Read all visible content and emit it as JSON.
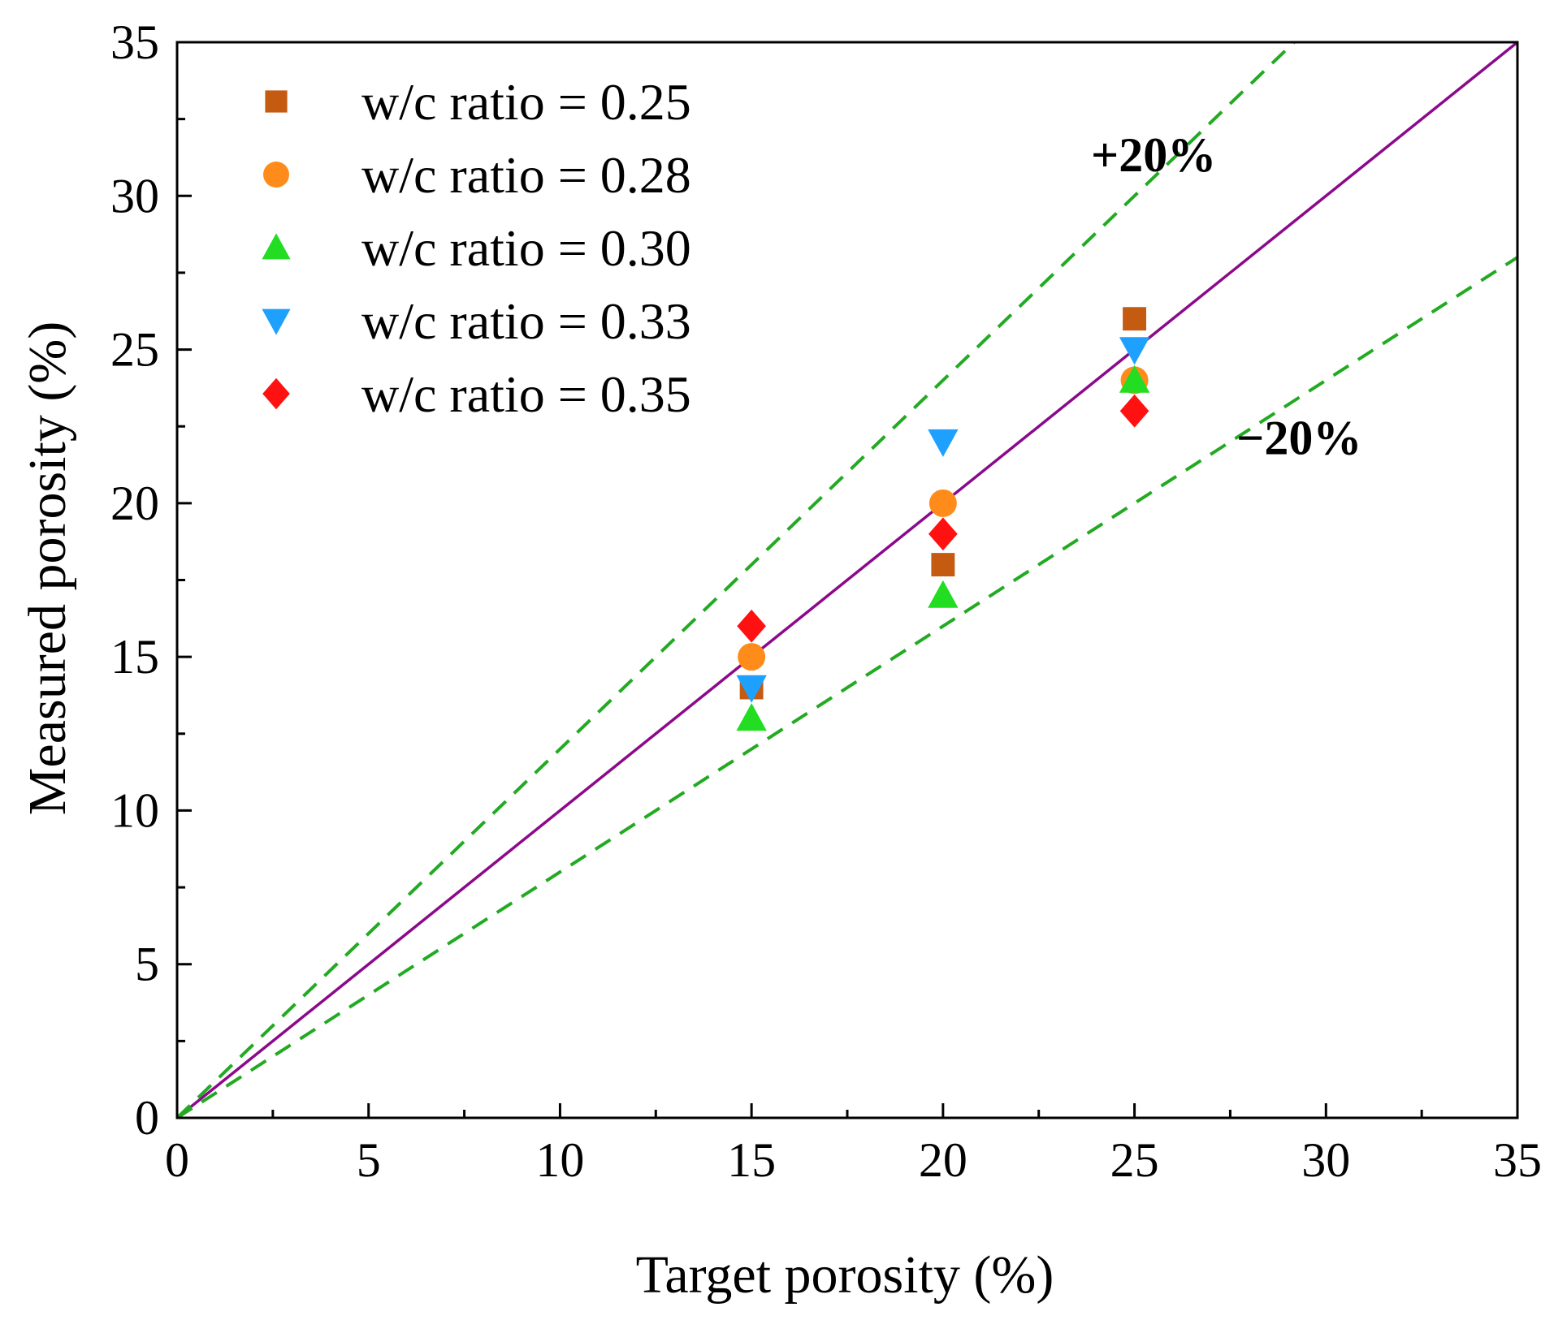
{
  "chart_data": {
    "type": "scatter",
    "title": "",
    "xlabel": "Target porosity (%)",
    "ylabel": "Measured porosity (%)",
    "xlim": [
      0,
      35
    ],
    "ylim": [
      0,
      35
    ],
    "xticks": [
      0,
      5,
      10,
      15,
      20,
      25,
      30,
      35
    ],
    "yticks": [
      0,
      5,
      10,
      15,
      20,
      25,
      30,
      35
    ],
    "x_tick_labels": [
      "0",
      "5",
      "10",
      "15",
      "20",
      "25",
      "30",
      "35"
    ],
    "y_tick_labels": [
      "0",
      "5",
      "10",
      "15",
      "20",
      "25",
      "30",
      "35"
    ],
    "legend_position": "top-left",
    "series": [
      {
        "name": "w/c ratio = 0.25",
        "marker": "square",
        "color": "#c55a11",
        "x": [
          15,
          20,
          25
        ],
        "y": [
          14,
          18,
          26
        ]
      },
      {
        "name": "w/c ratio = 0.28",
        "marker": "circle",
        "color": "#ff8c1a",
        "x": [
          15,
          20,
          25
        ],
        "y": [
          15,
          20,
          24
        ]
      },
      {
        "name": "w/c ratio = 0.30",
        "marker": "triangle-up",
        "color": "#22dd22",
        "x": [
          15,
          20,
          25
        ],
        "y": [
          13,
          17,
          24
        ]
      },
      {
        "name": "w/c ratio = 0.33",
        "marker": "triangle-down",
        "color": "#1ea0ff",
        "x": [
          15,
          20,
          25
        ],
        "y": [
          14,
          22,
          25
        ]
      },
      {
        "name": "w/c ratio = 0.35",
        "marker": "diamond",
        "color": "#ff1111",
        "x": [
          15,
          20,
          25
        ],
        "y": [
          16,
          19,
          23
        ]
      }
    ],
    "reference_lines": [
      {
        "name": "equality line",
        "style": "solid",
        "color": "#8b0a8b",
        "slope": 1.0
      },
      {
        "name": "+20% bound",
        "style": "dashed",
        "color": "#22aa22",
        "slope": 1.2
      },
      {
        "name": "-20% bound",
        "style": "dashed",
        "color": "#22aa22",
        "slope": 0.8
      }
    ],
    "annotations": [
      {
        "text": "+20%",
        "anchor_x": 25.5,
        "anchor_y": 30.8
      },
      {
        "text": "−20%",
        "anchor_x": 29.3,
        "anchor_y": 21.6
      }
    ]
  }
}
